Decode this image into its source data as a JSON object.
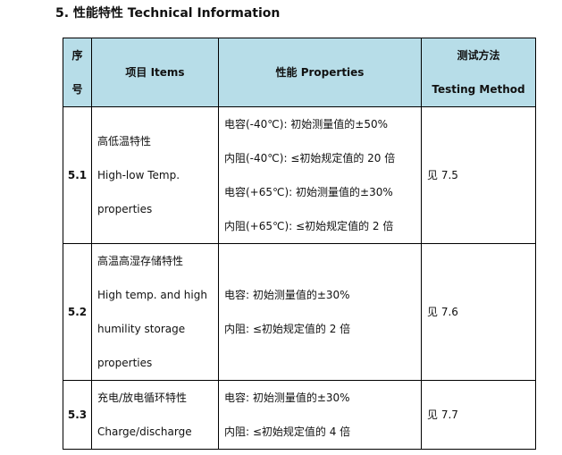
{
  "title": "5.  性能特性 Technical Information",
  "headers": {
    "no_line1": "序",
    "no_line2": "号",
    "items": "项目 Items",
    "properties": "性能 Properties",
    "method_line1": "测试方法",
    "method_line2": "Testing Method"
  },
  "rows": [
    {
      "no": "5.1",
      "items": [
        "高低温特性",
        "High-low Temp.",
        "properties"
      ],
      "properties": [
        "电容(-40℃): 初始测量值的±50%",
        "内阻(-40℃): ≤初始规定值的 20 倍",
        "电容(+65℃): 初始测量值的±30%",
        "内阻(+65℃): ≤初始规定值的 2 倍"
      ],
      "method": "见 7.5"
    },
    {
      "no": "5.2",
      "items": [
        "高温高湿存储特性",
        "High temp. and high",
        "humility storage",
        "properties"
      ],
      "properties": [
        "电容: 初始测量值的±30%",
        "内阻: ≤初始规定值的 2 倍"
      ],
      "method": "见 7.6"
    },
    {
      "no": "5.3",
      "items": [
        "充电/放电循环特性",
        "Charge/discharge"
      ],
      "properties": [
        "电容: 初始测量值的±30%",
        "内阻: ≤初始规定值的 4 倍"
      ],
      "method": "见 7.7"
    }
  ]
}
